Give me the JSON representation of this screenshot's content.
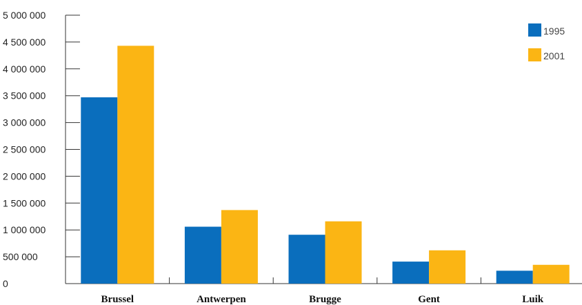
{
  "chart_data": {
    "type": "bar",
    "categories": [
      "Brussel",
      "Antwerpen",
      "Brugge",
      "Gent",
      "Luik"
    ],
    "series": [
      {
        "name": "1995",
        "values": [
          3470000,
          1060000,
          910000,
          410000,
          240000
        ],
        "color": "#0a6ebd"
      },
      {
        "name": "2001",
        "values": [
          4430000,
          1370000,
          1160000,
          620000,
          350000
        ],
        "color": "#fbb514"
      }
    ],
    "yticks": [
      "0",
      "500 000",
      "1 000 000",
      "1 500 000",
      "2 000 000",
      "2 500 000",
      "3 000 000",
      "3 500 000",
      "4 000 000",
      "4 500 000",
      "5 000 000"
    ],
    "ylim": [
      0,
      5000000
    ],
    "legend_position": "top-right",
    "grid": false
  }
}
